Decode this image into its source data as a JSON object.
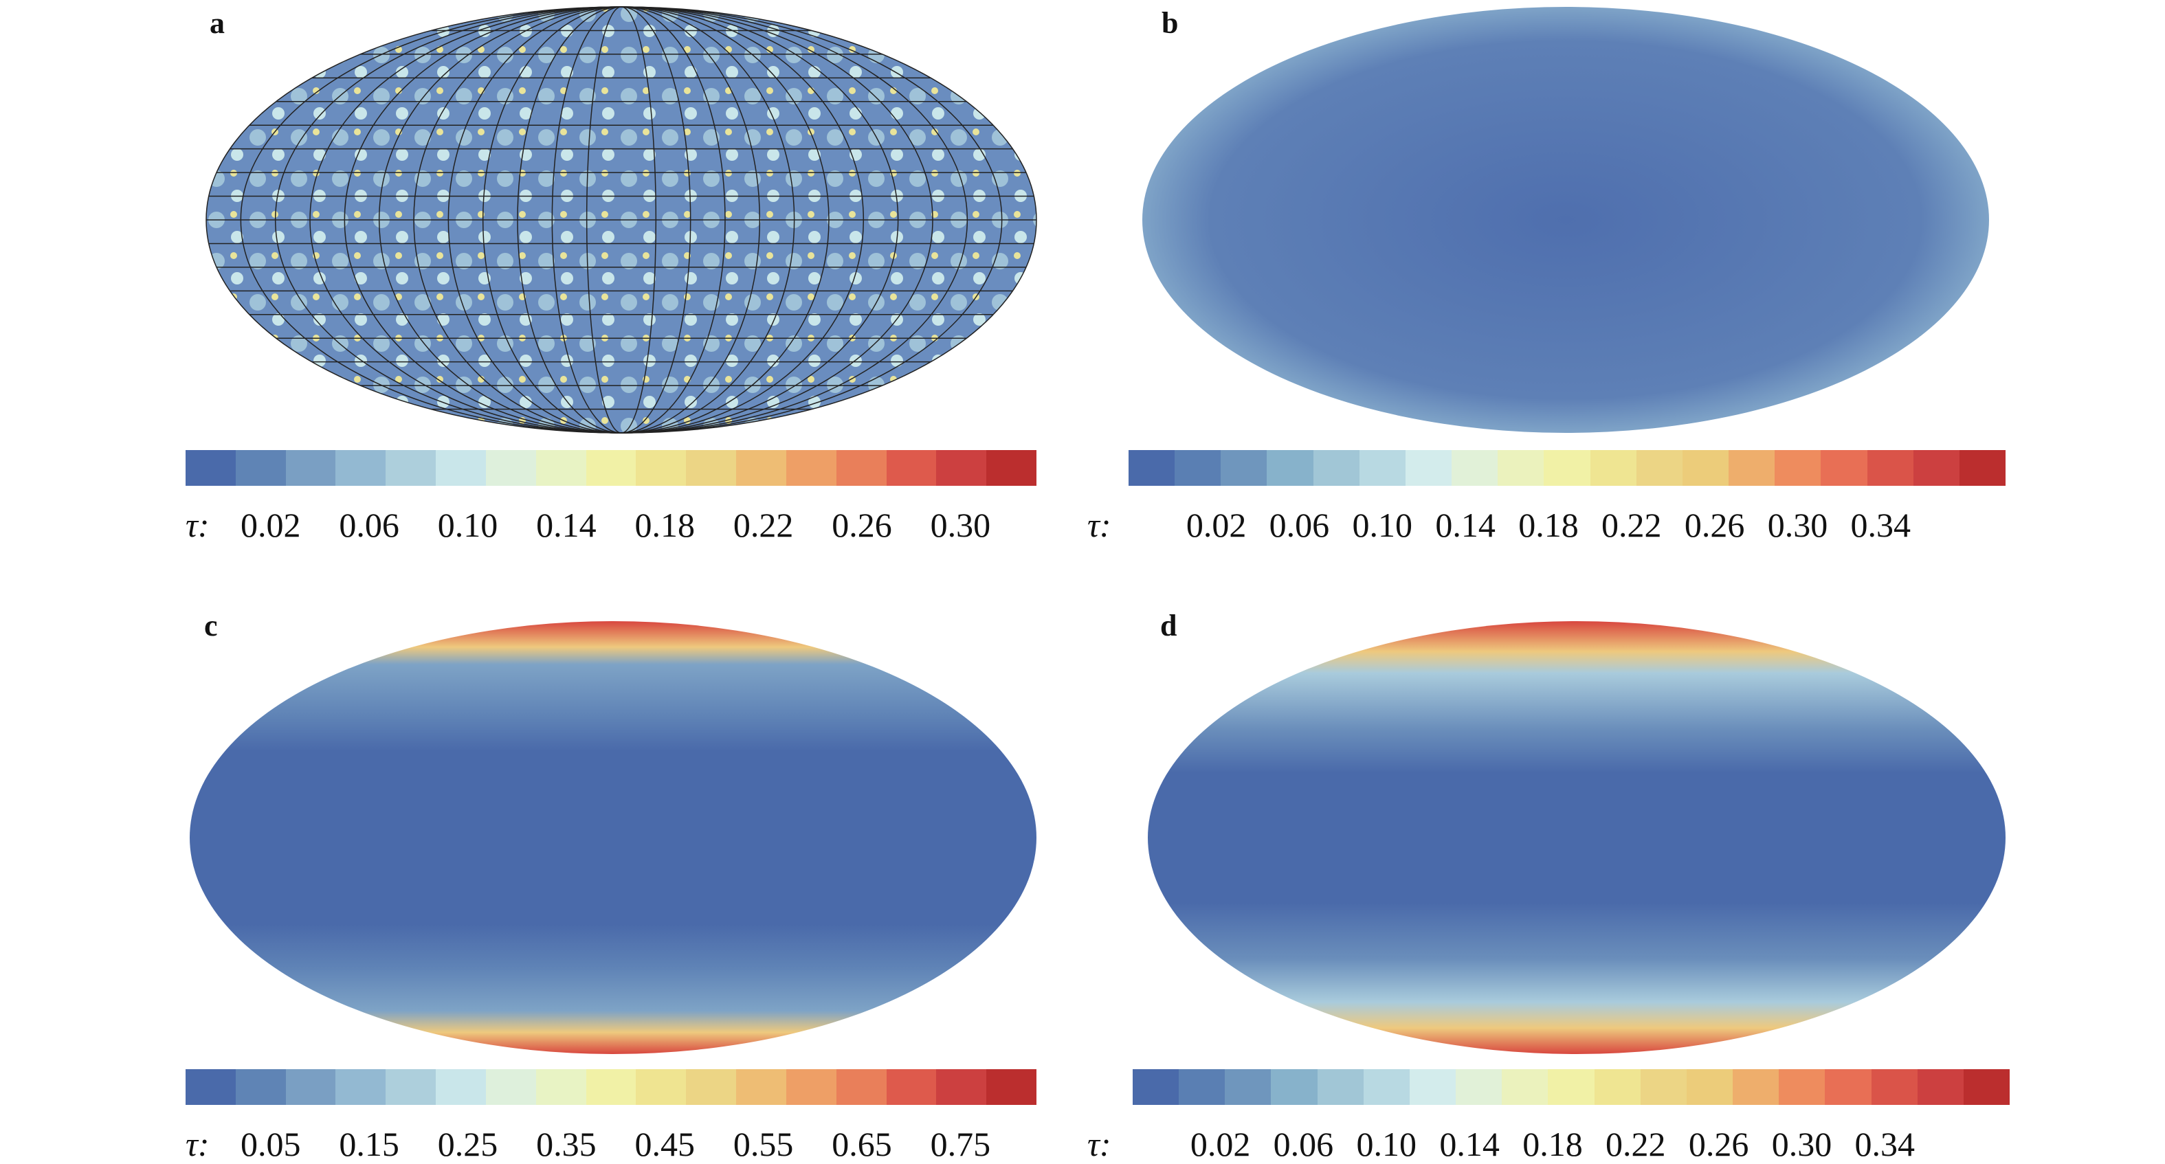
{
  "chart_data": [
    {
      "panel": "a",
      "type": "heatmap",
      "projection": "ellipse",
      "colorbar_label": "τ:",
      "ticks": [
        "0.02",
        "0.06",
        "0.10",
        "0.14",
        "0.18",
        "0.22",
        "0.26",
        "0.30"
      ],
      "range": [
        0.0,
        0.34
      ],
      "grid": true,
      "colors": [
        "#4a6aaa",
        "#5f84b5",
        "#7a9fc3",
        "#93b9d2",
        "#adcfdc",
        "#c9e6ea",
        "#def0dc",
        "#e8f3c4",
        "#f1f1a6",
        "#efe491",
        "#ecd585",
        "#eebd74",
        "#ee9f66",
        "#e97f5a",
        "#de5a4c",
        "#cc4040",
        "#bb2e2e"
      ]
    },
    {
      "panel": "b",
      "type": "heatmap",
      "projection": "ellipse",
      "colorbar_label": "τ:",
      "ticks": [
        "0.02",
        "0.06",
        "0.10",
        "0.14",
        "0.18",
        "0.22",
        "0.26",
        "0.30",
        "0.34"
      ],
      "range": [
        0.0,
        0.36
      ],
      "grid": false,
      "colors": [
        "#4a6aaa",
        "#5a7fb3",
        "#6f96bd",
        "#87b2cb",
        "#a1c6d6",
        "#b8d9e2",
        "#d3ecec",
        "#e1f1d8",
        "#ebf2bd",
        "#f1f1a6",
        "#efe592",
        "#ecd585",
        "#eccc7a",
        "#eeae6c",
        "#ee8c5e",
        "#e86f55",
        "#da5449",
        "#cc4040",
        "#bb2e2e"
      ]
    },
    {
      "panel": "c",
      "type": "heatmap",
      "projection": "ellipse",
      "colorbar_label": "τ:",
      "ticks": [
        "0.05",
        "0.15",
        "0.25",
        "0.35",
        "0.45",
        "0.55",
        "0.65",
        "0.75"
      ],
      "range": [
        0.0,
        0.8
      ],
      "grid": false,
      "colors": [
        "#4a6aaa",
        "#5f84b5",
        "#7a9fc3",
        "#93b9d2",
        "#adcfdc",
        "#c9e6ea",
        "#def0dc",
        "#e8f3c4",
        "#f1f1a6",
        "#efe491",
        "#ecd585",
        "#eebd74",
        "#ee9f66",
        "#e97f5a",
        "#de5a4c",
        "#cc4040",
        "#bb2e2e"
      ]
    },
    {
      "panel": "d",
      "type": "heatmap",
      "projection": "ellipse",
      "colorbar_label": "τ:",
      "ticks": [
        "0.02",
        "0.06",
        "0.10",
        "0.14",
        "0.18",
        "0.22",
        "0.26",
        "0.30",
        "0.34"
      ],
      "range": [
        0.0,
        0.36
      ],
      "grid": false,
      "colors": [
        "#4a6aaa",
        "#5a7fb3",
        "#6f96bd",
        "#87b2cb",
        "#a1c6d6",
        "#b8d9e2",
        "#d3ecec",
        "#e1f1d8",
        "#ebf2bd",
        "#f1f1a6",
        "#efe592",
        "#ecd585",
        "#eccc7a",
        "#eeae6c",
        "#ee8c5e",
        "#e86f55",
        "#da5449",
        "#cc4040",
        "#bb2e2e"
      ]
    }
  ]
}
